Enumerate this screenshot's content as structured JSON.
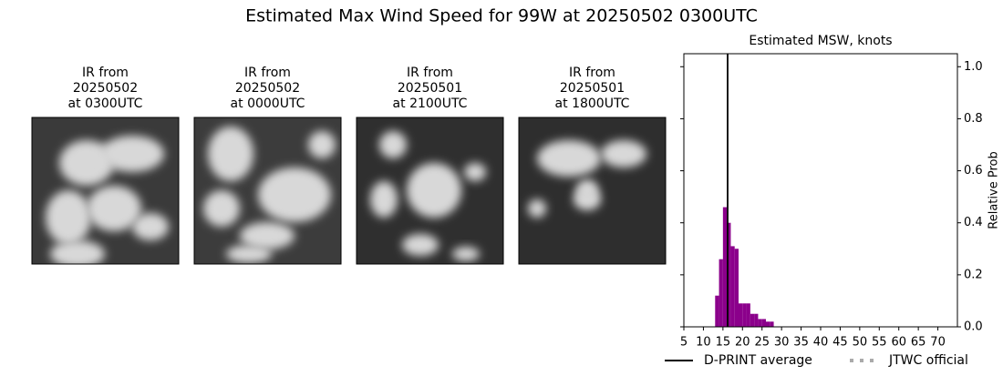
{
  "title": "Estimated Max Wind Speed for 99W at 20250502 0300UTC",
  "panels": [
    {
      "title": [
        "IR from",
        "20250502",
        "at 0300UTC"
      ]
    },
    {
      "title": [
        "IR from",
        "20250502",
        "at 0000UTC"
      ]
    },
    {
      "title": [
        "IR from",
        "20250501",
        "at 2100UTC"
      ]
    },
    {
      "title": [
        "IR from",
        "20250501",
        "at 1800UTC"
      ]
    }
  ],
  "chart_data": {
    "type": "histogram",
    "title": "Estimated MSW, knots",
    "y_label": "Relative Prob",
    "bins": [
      13,
      14,
      15,
      16,
      17,
      18,
      19,
      20,
      21,
      22,
      23,
      24,
      25,
      26,
      27,
      28
    ],
    "values": [
      0.12,
      0.26,
      0.46,
      0.4,
      0.31,
      0.3,
      0.09,
      0.09,
      0.09,
      0.05,
      0.05,
      0.03,
      0.03,
      0.02,
      0.02
    ],
    "color": "#8b008b",
    "xlim": [
      5,
      75
    ],
    "xticks": [
      5,
      10,
      15,
      20,
      25,
      30,
      35,
      40,
      45,
      50,
      55,
      60,
      65,
      70
    ],
    "ylim": [
      0,
      1.05
    ],
    "yticks": [
      {
        "value": 0,
        "label": "0.0"
      },
      0.2,
      0.4,
      0.6,
      0.8,
      {
        "value": 1,
        "label": "1.0"
      }
    ],
    "dprint": {
      "name": "D-PRINT average",
      "value": 16.2,
      "color": "#000000"
    },
    "jtwc": {
      "name": "JTWC official",
      "color": "#aaaaaa"
    }
  }
}
